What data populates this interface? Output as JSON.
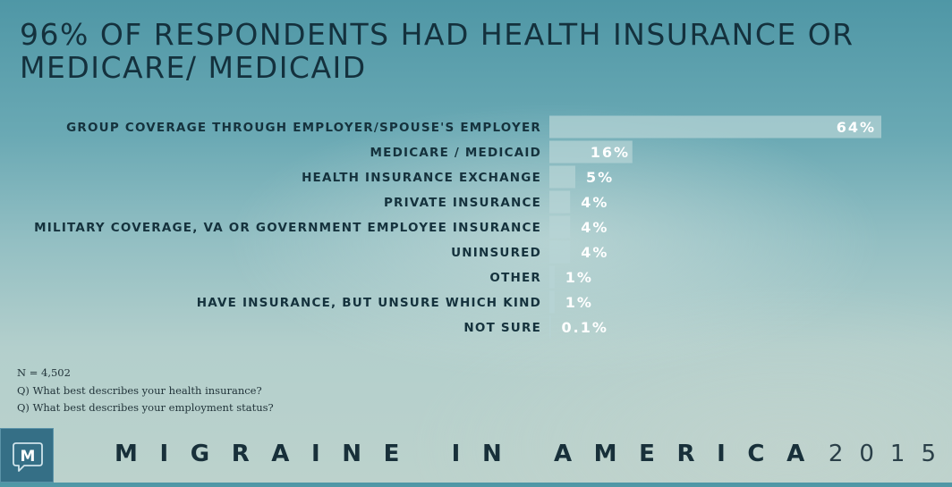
{
  "title": "96% OF RESPONDENTS HAD HEALTH INSURANCE OR MEDICARE/ MEDICAID",
  "chart_data": {
    "type": "bar",
    "orientation": "horizontal",
    "categories": [
      "GROUP COVERAGE THROUGH EMPLOYER/SPOUSE'S EMPLOYER",
      "MEDICARE / MEDICAID",
      "HEALTH INSURANCE EXCHANGE",
      "PRIVATE INSURANCE",
      "MILITARY COVERAGE, VA OR GOVERNMENT EMPLOYEE INSURANCE",
      "UNINSURED",
      "OTHER",
      "HAVE INSURANCE, BUT UNSURE WHICH KIND",
      "NOT SURE"
    ],
    "values": [
      64,
      16,
      5,
      4,
      4,
      4,
      1,
      1,
      0.1
    ],
    "value_labels": [
      "64%",
      "16%",
      "5%",
      "4%",
      "4%",
      "4%",
      "1%",
      "1%",
      "0.1%"
    ],
    "unit": "%",
    "xlim": [
      0,
      64
    ],
    "grid": false,
    "legend": "none",
    "bar_color": "#b7d4d6"
  },
  "notes": [
    "N = 4,502",
    "Q) What best describes your health insurance?",
    "Q) What best describes your employment status?"
  ],
  "logo_letter": "M",
  "brand": {
    "name": "MIGRAINE IN AMERICA",
    "year": "2015"
  },
  "colors": {
    "title": "#14313d",
    "bar": "#b7d4d6",
    "value_text": "#ffffff",
    "logo_bg": "#356f86"
  }
}
